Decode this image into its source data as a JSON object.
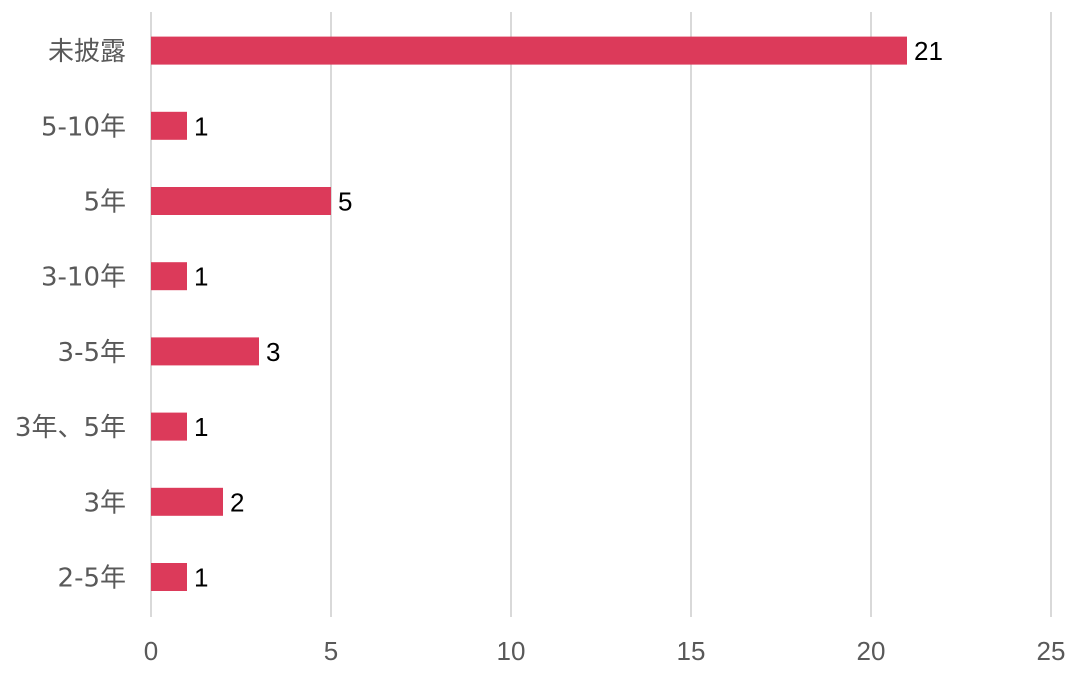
{
  "chart_data": {
    "type": "bar",
    "orientation": "horizontal",
    "categories": [
      "未披露",
      "5-10年",
      "5年",
      "3-10年",
      "3-5年",
      "3年、5年",
      "3年",
      "2-5年"
    ],
    "values": [
      21,
      1,
      5,
      1,
      3,
      1,
      2,
      1
    ],
    "xlim": [
      0,
      25
    ],
    "xticks": [
      0,
      5,
      10,
      15,
      20,
      25
    ],
    "grid": "vertical",
    "legend": "none",
    "data_labels": true,
    "colors": {
      "bar": "#DC3A5A",
      "grid": "#D9D9D9",
      "axis_text": "#595959",
      "value_text": "#000000"
    }
  }
}
